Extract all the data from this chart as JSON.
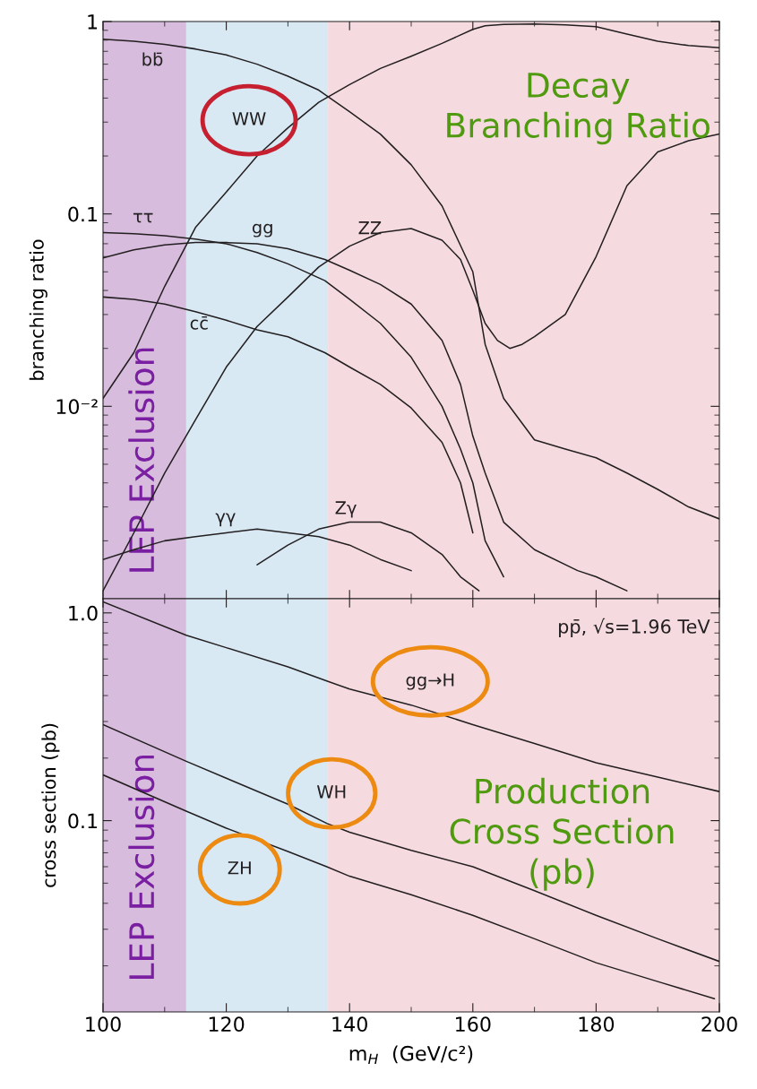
{
  "chart_data": [
    {
      "type": "line",
      "ylabel": "branching ratio",
      "log": true,
      "tick_labels": "y",
      "xlim": [
        100,
        200
      ],
      "xticks": [
        100,
        120,
        140,
        160,
        180,
        200
      ],
      "ylim": [
        0.001,
        1
      ],
      "yticks": [
        1,
        0.1,
        {
          "value": 0.01,
          "label": "10⁻²"
        }
      ],
      "bands": [
        {
          "axis": "x",
          "from": 100,
          "to": 113.5,
          "label": "LEP Exclusion",
          "color": "#d7bcdd"
        },
        {
          "axis": "x",
          "from": 113.5,
          "to": 136.5,
          "color": "#d8e9f4"
        },
        {
          "axis": "x",
          "from": 136.5,
          "to": 200,
          "color": "#f5dbe0"
        }
      ],
      "series": [
        {
          "name": "bb̄",
          "color": "#231f20",
          "x": [
            100,
            105,
            110,
            115,
            120,
            125,
            130,
            135,
            140,
            145,
            150,
            155,
            160,
            162,
            165,
            170,
            175,
            180,
            185,
            190,
            195,
            200
          ],
          "values": [
            0.81,
            0.79,
            0.76,
            0.72,
            0.67,
            0.6,
            0.52,
            0.44,
            0.34,
            0.26,
            0.18,
            0.11,
            0.05,
            0.021,
            0.011,
            0.0067,
            0.006,
            0.0054,
            0.0045,
            0.0037,
            0.003,
            0.0026
          ]
        },
        {
          "name": "WW",
          "color": "#231f20",
          "x": [
            100,
            105,
            110,
            115,
            120,
            125,
            130,
            135,
            140,
            145,
            150,
            155,
            160,
            162,
            165,
            170,
            175,
            180,
            185,
            190,
            195,
            200
          ],
          "values": [
            0.011,
            0.019,
            0.042,
            0.085,
            0.13,
            0.2,
            0.28,
            0.38,
            0.47,
            0.57,
            0.66,
            0.77,
            0.91,
            0.95,
            0.965,
            0.97,
            0.96,
            0.94,
            0.86,
            0.79,
            0.75,
            0.73
          ]
        },
        {
          "name": "ZZ",
          "color": "#231f20",
          "x": [
            100,
            105,
            110,
            115,
            120,
            125,
            130,
            135,
            140,
            145,
            150,
            155,
            158,
            160,
            162,
            164,
            166,
            168,
            170,
            175,
            180,
            185,
            190,
            195,
            200
          ],
          "values": [
            0.0011,
            0.0022,
            0.0045,
            0.0085,
            0.016,
            0.026,
            0.037,
            0.053,
            0.068,
            0.08,
            0.084,
            0.073,
            0.058,
            0.04,
            0.027,
            0.022,
            0.02,
            0.021,
            0.023,
            0.03,
            0.06,
            0.14,
            0.21,
            0.24,
            0.26
          ]
        },
        {
          "name": "ττ",
          "color": "#231f20",
          "x": [
            100,
            105,
            110,
            115,
            120,
            125,
            130,
            136,
            140,
            145,
            150,
            155,
            158,
            160,
            162,
            165
          ],
          "values": [
            0.08,
            0.079,
            0.077,
            0.074,
            0.07,
            0.063,
            0.055,
            0.045,
            0.036,
            0.027,
            0.018,
            0.01,
            0.006,
            0.004,
            0.002,
            0.0013
          ]
        },
        {
          "name": "gg",
          "color": "#231f20",
          "x": [
            100,
            105,
            110,
            115,
            120,
            125,
            130,
            136,
            140,
            145,
            150,
            155,
            158,
            160,
            162,
            165,
            170,
            177,
            180,
            185
          ],
          "values": [
            0.059,
            0.065,
            0.069,
            0.071,
            0.071,
            0.07,
            0.066,
            0.058,
            0.051,
            0.043,
            0.034,
            0.022,
            0.013,
            0.007,
            0.0045,
            0.0025,
            0.0018,
            0.0014,
            0.0013,
            0.0011
          ]
        },
        {
          "name": "cc̄",
          "color": "#231f20",
          "x": [
            100,
            105,
            110,
            115,
            120,
            125,
            130,
            136,
            140,
            145,
            150,
            155,
            158,
            160
          ],
          "values": [
            0.037,
            0.036,
            0.034,
            0.031,
            0.028,
            0.025,
            0.023,
            0.019,
            0.016,
            0.013,
            0.0098,
            0.0065,
            0.004,
            0.0022
          ]
        },
        {
          "name": "γγ",
          "color": "#231f20",
          "x": [
            100,
            105,
            110,
            115,
            120,
            125,
            130,
            135,
            140,
            145,
            150
          ],
          "values": [
            0.0016,
            0.0018,
            0.002,
            0.0021,
            0.0022,
            0.0023,
            0.0022,
            0.0021,
            0.0019,
            0.0016,
            0.0014
          ]
        },
        {
          "name": "Zγ",
          "color": "#231f20",
          "x": [
            125,
            130,
            135,
            140,
            145,
            150,
            155,
            158,
            161
          ],
          "values": [
            0.0015,
            0.0019,
            0.0023,
            0.0025,
            0.0025,
            0.0022,
            0.0017,
            0.0013,
            0.0011
          ]
        }
      ],
      "annotations": [
        "Decay\nBranching Ratio"
      ]
    },
    {
      "type": "line",
      "ylabel": "cross section (pb)",
      "xlabel": "m$_{H}$  (GeV/c²)",
      "log": true,
      "xlim": [
        100,
        200
      ],
      "xticks": [
        100,
        120,
        140,
        160,
        180,
        200
      ],
      "ylim": [
        0.012,
        1.17
      ],
      "yticks": [
        {
          "value": 1,
          "label": "1.0"
        },
        0.1
      ],
      "bands": [
        {
          "axis": "x",
          "from": 100,
          "to": 113.5,
          "label": "LEP Exclusion",
          "color": "#d7bcdd"
        },
        {
          "axis": "x",
          "from": 113.5,
          "to": 136.5,
          "color": "#d8e9f4"
        },
        {
          "axis": "x",
          "from": 136.5,
          "to": 200,
          "color": "#f5dbe0"
        }
      ],
      "series": [
        {
          "name": "gg→H",
          "color": "#231f20",
          "x": [
            100,
            113.5,
            120,
            130,
            136.3,
            140,
            150,
            160,
            170,
            180,
            190,
            200
          ],
          "values": [
            1.13,
            0.78,
            0.68,
            0.55,
            0.47,
            0.43,
            0.36,
            0.29,
            0.235,
            0.19,
            0.162,
            0.138
          ]
        },
        {
          "name": "WH",
          "color": "#231f20",
          "x": [
            100,
            113.5,
            120,
            130,
            136.3,
            140,
            150,
            160,
            170,
            180,
            190,
            200
          ],
          "values": [
            0.29,
            0.193,
            0.16,
            0.12,
            0.097,
            0.088,
            0.072,
            0.06,
            0.046,
            0.035,
            0.027,
            0.021
          ]
        },
        {
          "name": "ZH",
          "color": "#231f20",
          "x": [
            100,
            113.5,
            120,
            130,
            136.3,
            140,
            150,
            160,
            170,
            180,
            190,
            199.2
          ],
          "values": [
            0.166,
            0.111,
            0.092,
            0.071,
            0.06,
            0.054,
            0.044,
            0.035,
            0.027,
            0.0207,
            0.0168,
            0.0139
          ]
        }
      ],
      "annotations": [
        "pp̄, √s=1.96 TeV",
        "Production\nCross Section\n(pb)"
      ]
    }
  ]
}
